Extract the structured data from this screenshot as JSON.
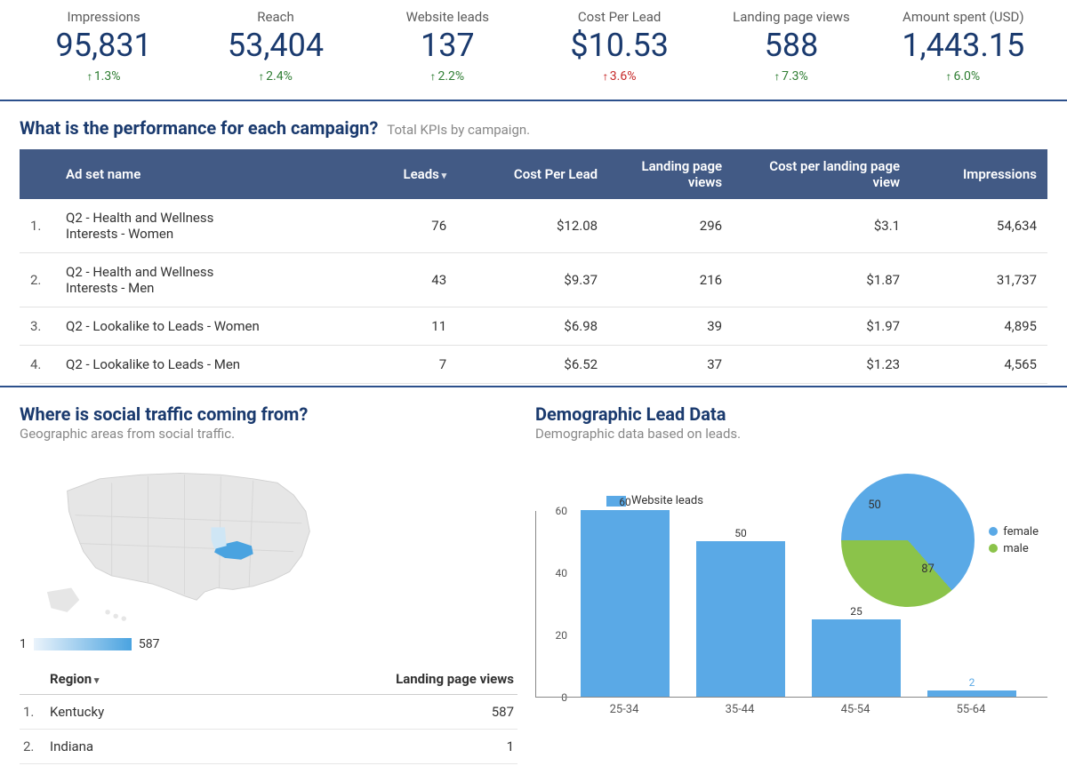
{
  "colors": {
    "primary": "#1a3a6e",
    "header_bg": "#425a85",
    "bar": "#5aa9e6",
    "pie_female": "#5aa9e6",
    "pie_male": "#8bc34a",
    "up": "#2e7d32",
    "down": "#c62828",
    "map_base": "#e6e6e6",
    "map_highlight": "#4aa3e0",
    "map_secondary": "#cfe6f5"
  },
  "kpis": [
    {
      "label": "Impressions",
      "value": "95,831",
      "change": "1.3%",
      "dir": "up"
    },
    {
      "label": "Reach",
      "value": "53,404",
      "change": "2.4%",
      "dir": "up"
    },
    {
      "label": "Website leads",
      "value": "137",
      "change": "2.2%",
      "dir": "up"
    },
    {
      "label": "Cost Per Lead",
      "value": "$10.53",
      "change": "3.6%",
      "dir": "down"
    },
    {
      "label": "Landing page views",
      "value": "588",
      "change": "7.3%",
      "dir": "up"
    },
    {
      "label": "Amount spent (USD)",
      "value": "1,443.15",
      "change": "6.0%",
      "dir": "up"
    }
  ],
  "campaign_section": {
    "title": "What is the performance for each campaign?",
    "subtitle": "Total KPIs by campaign.",
    "headers": [
      "",
      "Ad set name",
      "Leads",
      "Cost Per Lead",
      "Landing page views",
      "Cost per landing page view",
      "Impressions"
    ],
    "sort_col_index": 2,
    "rows": [
      {
        "idx": "1.",
        "name": "Q2 - Health and Wellness Interests - Women",
        "leads": "76",
        "cpl": "$12.08",
        "lpv": "296",
        "cplpv": "$3.1",
        "impr": "54,634"
      },
      {
        "idx": "2.",
        "name": "Q2 - Health and Wellness Interests - Men",
        "leads": "43",
        "cpl": "$9.37",
        "lpv": "216",
        "cplpv": "$1.87",
        "impr": "31,737"
      },
      {
        "idx": "3.",
        "name": "Q2 - Lookalike to Leads - Women",
        "leads": "11",
        "cpl": "$6.98",
        "lpv": "39",
        "cplpv": "$1.97",
        "impr": "4,895"
      },
      {
        "idx": "4.",
        "name": "Q2 - Lookalike to Leads - Men",
        "leads": "7",
        "cpl": "$6.52",
        "lpv": "37",
        "cplpv": "$1.23",
        "impr": "4,565"
      }
    ]
  },
  "geo_section": {
    "title": "Where is social traffic coming from?",
    "subtitle": "Geographic areas from social traffic.",
    "legend_min": "1",
    "legend_max": "587",
    "table_headers": [
      "",
      "Region",
      "Landing page views"
    ],
    "rows": [
      {
        "idx": "1.",
        "region": "Kentucky",
        "lpv": "587"
      },
      {
        "idx": "2.",
        "region": "Indiana",
        "lpv": "1"
      }
    ]
  },
  "demo_section": {
    "title": "Demographic Lead Data",
    "subtitle": "Demographic data based on leads.",
    "bar_chart": {
      "legend_label": "Website leads",
      "ymax": 60,
      "yticks": [
        0,
        20,
        40,
        60
      ],
      "categories": [
        "25-34",
        "35-44",
        "45-54",
        "55-64"
      ],
      "values": [
        60,
        50,
        25,
        2
      ]
    },
    "pie_chart": {
      "female": {
        "label": "female",
        "value": 87
      },
      "male": {
        "label": "male",
        "value": 50
      }
    }
  }
}
